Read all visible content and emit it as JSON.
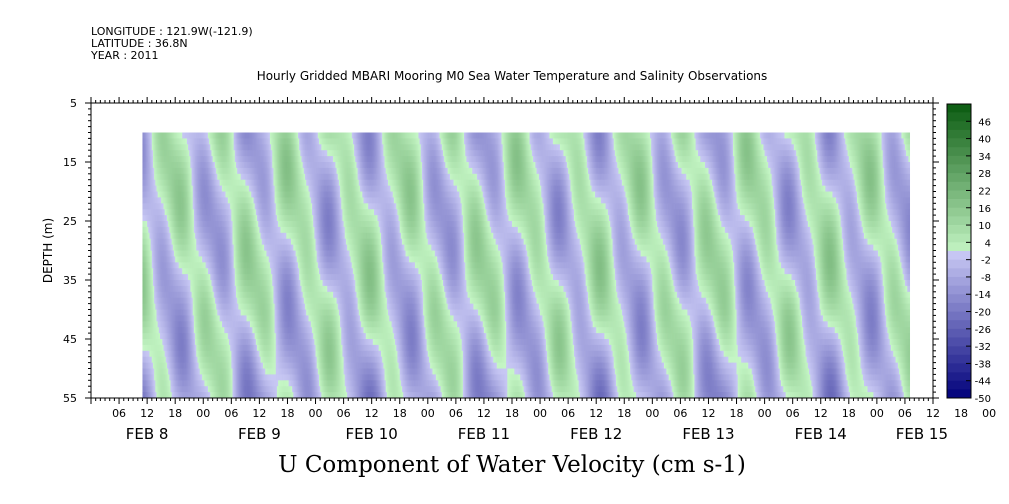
{
  "header": {
    "longitude": "LONGITUDE : 121.9W(-121.9)",
    "latitude": "LATITUDE : 36.8N",
    "year": "YEAR : 2011"
  },
  "chart_data": {
    "type": "heatmap",
    "title": "Hourly Gridded MBARI Mooring M0 Sea Water Temperature and Salinity Observations",
    "bottom_title": "U Component of Water Velocity (cm s-1)",
    "ylabel": "DEPTH (m)",
    "y_ticks": [
      "5",
      "15",
      "25",
      "35",
      "45",
      "55"
    ],
    "y_range": [
      5,
      55
    ],
    "y_reversed": true,
    "data_depth_range": [
      10,
      55
    ],
    "x_range_hours": [
      0,
      180
    ],
    "data_x_range_hours": [
      11,
      175
    ],
    "x_hour_ticks": [
      "06",
      "12",
      "18",
      "00",
      "06",
      "12",
      "18",
      "00",
      "06",
      "12",
      "18",
      "00",
      "06",
      "12",
      "18",
      "00",
      "06",
      "12",
      "18",
      "00",
      "06",
      "12",
      "18",
      "00",
      "06",
      "12",
      "18",
      "00",
      "06",
      "12",
      "18",
      "00"
    ],
    "x_dates": [
      "FEB  8",
      "FEB  9",
      "FEB 10",
      "FEB 11",
      "FEB 12",
      "FEB 13",
      "FEB 14",
      "FEB 15"
    ],
    "colorbar": {
      "labels": [
        "46",
        "40",
        "34",
        "28",
        "22",
        "16",
        "10",
        "4",
        "-2",
        "-8",
        "-14",
        "-20",
        "-26",
        "-32",
        "-38",
        "-44",
        "-50"
      ],
      "min": -50,
      "max": 52,
      "step": 3
    },
    "palette": {
      "positive_light": "#c6f7c6",
      "positive_dark": "#0a5a10",
      "negative_light": "#c8c8f4",
      "negative_dark": "#00007a"
    }
  }
}
